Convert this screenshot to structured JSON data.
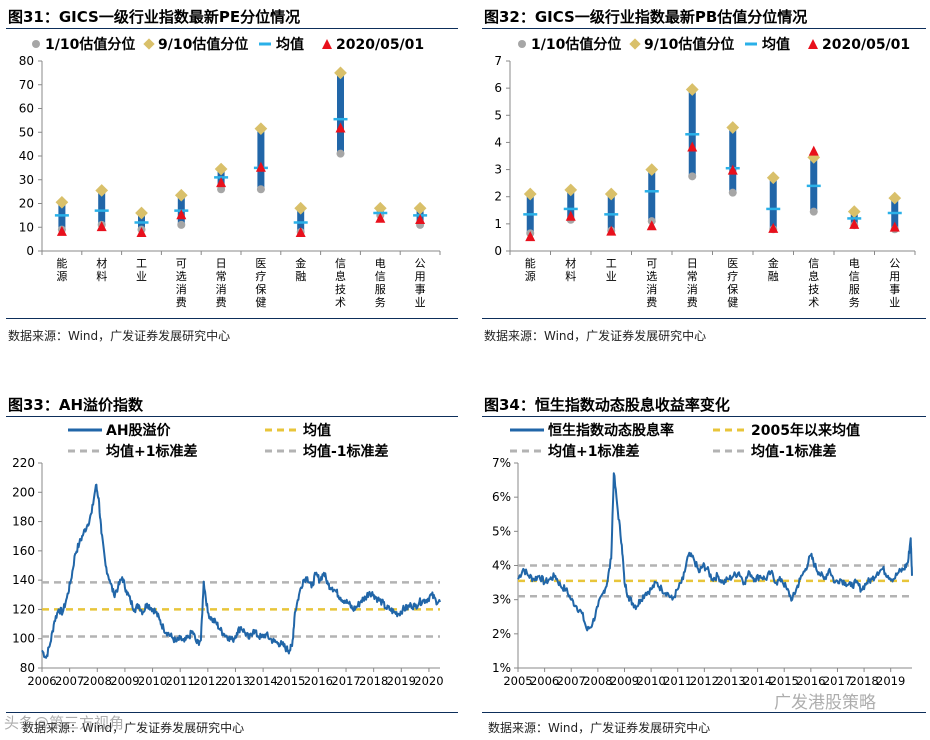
{
  "panels": [
    {
      "title": "图31：GICS一级行业指数最新PE分位情况",
      "source": "数据来源：Wind，广发证券发展研究中心"
    },
    {
      "title": "图32：GICS一级行业指数最新PB估值分位情况",
      "source": "数据来源：Wind，广发证券发展研究中心"
    },
    {
      "title": "图33：AH溢价指数",
      "source": "数据来源：Wind，广发证券发展研究中心"
    },
    {
      "title": "图34：恒生指数动态股息收益率变化",
      "source": "数据来源：Wind，广发证券发展研究中心"
    }
  ],
  "watermarks": {
    "left": "头条@第三方视角",
    "right": "广发港股策略"
  },
  "colors": {
    "p10": "#a6a6a6",
    "p90": "#d9c06a",
    "mean": "#2ab0e8",
    "latest": "#e8101c",
    "bar": "#2166a8",
    "line": "#2166a8",
    "meanLine": "#e8c53a",
    "band": "#b3b3b3"
  },
  "chart_data": [
    {
      "type": "range",
      "title": "GICS一级行业指数最新PE分位情况",
      "categories": [
        "能源",
        "材料",
        "工业",
        "可选消费",
        "日常消费",
        "医疗保健",
        "金融",
        "信息技术",
        "电信服务",
        "公用事业"
      ],
      "legend": [
        "1/10估值分位",
        "9/10估值分位",
        "均值",
        "2020/05/01"
      ],
      "ylim": [
        0,
        80
      ],
      "yticks": [
        0,
        10,
        20,
        30,
        40,
        50,
        60,
        70,
        80
      ],
      "p10": [
        9,
        11,
        9,
        11,
        26,
        26,
        8,
        41,
        15,
        11
      ],
      "p90": [
        20.5,
        25.5,
        16,
        23.5,
        34.5,
        51.5,
        18,
        75,
        18,
        18
      ],
      "mean": [
        15,
        17,
        12,
        17,
        31,
        35,
        12,
        55.5,
        16,
        15
      ],
      "latest": [
        8.5,
        10.5,
        8,
        15.5,
        29,
        35.5,
        8,
        52,
        14,
        13.5
      ]
    },
    {
      "type": "range",
      "title": "GICS一级行业指数最新PB估值分位情况",
      "categories": [
        "能源",
        "材料",
        "工业",
        "可选消费",
        "日常消费",
        "医疗保健",
        "金融",
        "信息技术",
        "电信服务",
        "公用事业"
      ],
      "legend": [
        "1/10估值分位",
        "9/10估值分位",
        "均值",
        "2020/05/01"
      ],
      "ylim": [
        0,
        7
      ],
      "yticks": [
        0,
        1,
        2,
        3,
        4,
        5,
        6,
        7
      ],
      "p10": [
        0.65,
        1.15,
        0.75,
        1.1,
        2.75,
        2.15,
        0.8,
        1.45,
        0.95,
        0.8
      ],
      "p90": [
        2.1,
        2.25,
        2.1,
        3.0,
        5.95,
        4.55,
        2.7,
        3.45,
        1.45,
        1.95
      ],
      "mean": [
        1.35,
        1.55,
        1.35,
        2.2,
        4.3,
        3.05,
        1.55,
        2.4,
        1.2,
        1.4
      ],
      "latest": [
        0.55,
        1.3,
        0.75,
        0.95,
        3.85,
        3.0,
        0.85,
        3.7,
        1.0,
        0.9
      ]
    },
    {
      "type": "line",
      "title": "AH溢价指数",
      "legend": [
        "AH股溢价",
        "均值",
        "均值+1标准差",
        "均值-1标准差"
      ],
      "ylim": [
        80,
        220
      ],
      "yticks": [
        80,
        100,
        120,
        140,
        160,
        180,
        200,
        220
      ],
      "xticks": [
        "2006",
        "2007",
        "2008",
        "2009",
        "2010",
        "2011",
        "2012",
        "2013",
        "2014",
        "2015",
        "2016",
        "2017",
        "2018",
        "2019",
        "2020"
      ],
      "xlim": [
        2006,
        2020.4
      ],
      "mean": 120,
      "upper": 138.5,
      "lower": 101.5,
      "series": {
        "x": [
          2006.0,
          2006.15,
          2006.3,
          2006.45,
          2006.6,
          2006.75,
          2006.9,
          2007.05,
          2007.2,
          2007.35,
          2007.5,
          2007.65,
          2007.8,
          2007.95,
          2008.05,
          2008.15,
          2008.3,
          2008.45,
          2008.6,
          2008.75,
          2008.9,
          2009.05,
          2009.2,
          2009.35,
          2009.5,
          2009.65,
          2009.8,
          2009.95,
          2010.1,
          2010.25,
          2010.4,
          2010.55,
          2010.7,
          2010.85,
          2011.0,
          2011.15,
          2011.3,
          2011.45,
          2011.6,
          2011.75,
          2011.85,
          2012.0,
          2012.15,
          2012.3,
          2012.45,
          2012.6,
          2012.75,
          2012.9,
          2013.05,
          2013.2,
          2013.35,
          2013.5,
          2013.65,
          2013.8,
          2013.95,
          2014.1,
          2014.25,
          2014.4,
          2014.55,
          2014.7,
          2014.85,
          2014.95,
          2015.05,
          2015.15,
          2015.3,
          2015.45,
          2015.6,
          2015.75,
          2015.9,
          2016.05,
          2016.2,
          2016.35,
          2016.5,
          2016.65,
          2016.8,
          2016.95,
          2017.1,
          2017.25,
          2017.4,
          2017.55,
          2017.7,
          2017.85,
          2018.0,
          2018.15,
          2018.3,
          2018.45,
          2018.6,
          2018.75,
          2018.9,
          2019.05,
          2019.2,
          2019.35,
          2019.5,
          2019.65,
          2019.8,
          2019.95,
          2020.1,
          2020.25,
          2020.4
        ],
        "y": [
          92,
          87,
          97,
          112,
          120,
          118,
          128,
          140,
          158,
          165,
          172,
          178,
          186,
          205,
          196,
          172,
          150,
          140,
          130,
          135,
          142,
          133,
          126,
          120,
          123,
          118,
          124,
          121,
          119,
          113,
          107,
          104,
          101,
          98,
          100,
          98,
          101,
          105,
          97,
          99,
          139,
          118,
          113,
          111,
          106,
          103,
          101,
          99,
          104,
          108,
          104,
          100,
          106,
          102,
          101,
          103,
          100,
          98,
          97,
          96,
          93,
          92,
          95,
          118,
          130,
          140,
          142,
          135,
          144,
          140,
          145,
          137,
          135,
          132,
          128,
          126,
          124,
          120,
          122,
          126,
          128,
          132,
          130,
          127,
          125,
          121,
          120,
          118,
          117,
          120,
          121,
          123,
          122,
          125,
          126,
          127,
          130,
          126,
          125
        ]
      }
    },
    {
      "type": "line",
      "title": "恒生指数动态股息收益率变化",
      "legend": [
        "恒生指数动态股息率",
        "2005年以来均值",
        "均值+1标准差",
        "均值-1标准差"
      ],
      "ylim": [
        1,
        7
      ],
      "yticks": [
        "1%",
        "2%",
        "3%",
        "4%",
        "5%",
        "6%",
        "7%"
      ],
      "xticks": [
        "2005",
        "2006",
        "2007",
        "2008",
        "2009",
        "2010",
        "2011",
        "2012",
        "2013",
        "2014",
        "2015",
        "2016",
        "2017",
        "2018",
        "2019"
      ],
      "xlim": [
        2005,
        2019.8
      ],
      "mean": 3.55,
      "upper": 4.0,
      "lower": 3.1,
      "series": {
        "x": [
          2005.0,
          2005.2,
          2005.4,
          2005.6,
          2005.8,
          2006.0,
          2006.2,
          2006.4,
          2006.6,
          2006.8,
          2007.0,
          2007.2,
          2007.4,
          2007.6,
          2007.8,
          2008.0,
          2008.2,
          2008.35,
          2008.5,
          2008.6,
          2008.75,
          2008.9,
          2009.0,
          2009.15,
          2009.3,
          2009.45,
          2009.6,
          2009.8,
          2010.0,
          2010.2,
          2010.4,
          2010.6,
          2010.8,
          2011.0,
          2011.2,
          2011.4,
          2011.6,
          2011.8,
          2011.95,
          2012.1,
          2012.3,
          2012.5,
          2012.7,
          2012.9,
          2013.1,
          2013.3,
          2013.5,
          2013.7,
          2013.9,
          2014.1,
          2014.3,
          2014.5,
          2014.7,
          2014.9,
          2015.1,
          2015.3,
          2015.45,
          2015.6,
          2015.8,
          2016.0,
          2016.15,
          2016.3,
          2016.5,
          2016.7,
          2016.9,
          2017.1,
          2017.3,
          2017.5,
          2017.7,
          2017.9,
          2018.1,
          2018.3,
          2018.5,
          2018.7,
          2018.9,
          2019.1,
          2019.3,
          2019.5,
          2019.65,
          2019.75,
          2019.8
        ],
        "y": [
          3.6,
          3.9,
          3.7,
          3.6,
          3.7,
          3.5,
          3.6,
          3.7,
          3.4,
          3.3,
          3.0,
          2.8,
          2.6,
          2.1,
          2.3,
          2.8,
          3.2,
          3.5,
          4.2,
          6.7,
          5.6,
          4.6,
          3.5,
          3.1,
          2.9,
          2.8,
          3.0,
          3.2,
          3.3,
          3.5,
          3.3,
          3.2,
          3.0,
          3.3,
          3.6,
          4.3,
          4.2,
          3.8,
          4.0,
          3.9,
          3.6,
          3.7,
          3.5,
          3.6,
          3.7,
          3.8,
          3.5,
          3.8,
          3.6,
          3.7,
          3.6,
          3.8,
          3.5,
          3.6,
          3.3,
          3.0,
          3.3,
          3.6,
          3.9,
          4.3,
          4.0,
          3.8,
          3.6,
          3.9,
          3.5,
          3.6,
          3.5,
          3.4,
          3.5,
          3.3,
          3.5,
          3.6,
          3.8,
          3.9,
          3.7,
          3.6,
          3.8,
          3.9,
          4.1,
          4.8,
          3.7
        ]
      }
    }
  ]
}
